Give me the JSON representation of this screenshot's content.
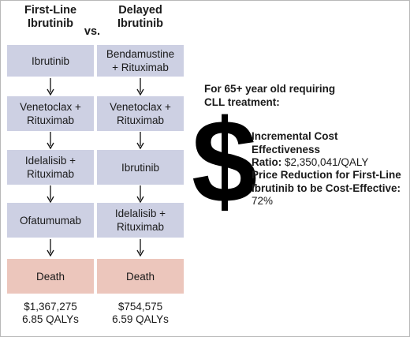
{
  "columns": {
    "left": {
      "title_line1": "First-Line",
      "title_line2": "Ibrutinib",
      "steps": [
        [
          "Ibrutinib"
        ],
        [
          "Venetoclax +",
          "Rituximab"
        ],
        [
          "Idelalisib +",
          "Rituximab"
        ],
        [
          "Ofatumumab"
        ]
      ],
      "death": "Death",
      "cost": "$1,367,275",
      "qalys": "6.85 QALYs"
    },
    "vs": "vs.",
    "right": {
      "title_line1": "Delayed",
      "title_line2": "Ibrutinib",
      "steps": [
        [
          "Bendamustine",
          "+ Rituximab"
        ],
        [
          "Venetoclax +",
          "Rituximab"
        ],
        [
          "Ibrutinib"
        ],
        [
          "Idelalisib +",
          "Rituximab"
        ]
      ],
      "death": "Death",
      "cost": "$754,575",
      "qalys": "6.59 QALYs"
    }
  },
  "icon": {
    "symbol": "$",
    "name": "dollar-icon"
  },
  "summary": {
    "heading_line1": "For 65+ year old requiring",
    "heading_line2": "CLL treatment:",
    "icer_label_line1": "Incremental Cost Effectiveness",
    "icer_label_line2": "Ratio:",
    "icer_value": "$2,350,041/QALY",
    "price_label_line1": "Price Reduction for First-Line",
    "price_label_line2": "Ibrutinib to be Cost-Effective:",
    "price_value": "72%"
  },
  "colors": {
    "treatment_box": "#cdd0e3",
    "death_box": "#ecc6bc"
  }
}
